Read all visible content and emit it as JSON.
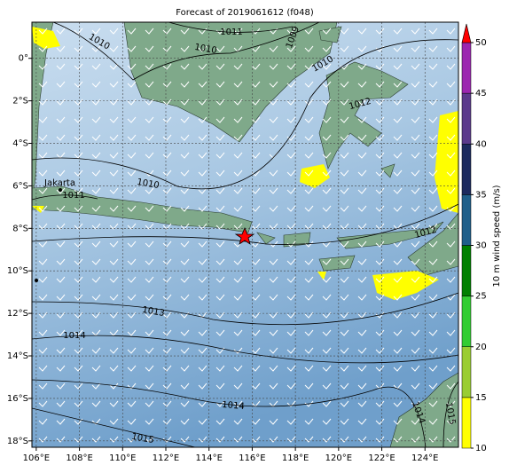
{
  "title": "Forecast of 2019061612 (f048)",
  "map": {
    "xlim": [
      105.8,
      125.55
    ],
    "ylim": [
      -18.3,
      1.7
    ],
    "xticks": [
      {
        "value": 106,
        "label": "106°E"
      },
      {
        "value": 108,
        "label": "108°E"
      },
      {
        "value": 110,
        "label": "110°E"
      },
      {
        "value": 112,
        "label": "112°E"
      },
      {
        "value": 114,
        "label": "114°E"
      },
      {
        "value": 116,
        "label": "116°E"
      },
      {
        "value": 118,
        "label": "118°E"
      },
      {
        "value": 120,
        "label": "120°E"
      },
      {
        "value": 122,
        "label": "122°E"
      },
      {
        "value": 124,
        "label": "124°E"
      }
    ],
    "yticks": [
      {
        "value": 0,
        "label": "0°"
      },
      {
        "value": -2,
        "label": "2°S"
      },
      {
        "value": -4,
        "label": "4°S"
      },
      {
        "value": -6,
        "label": "6°S"
      },
      {
        "value": -8,
        "label": "8°S"
      },
      {
        "value": -10,
        "label": "10°S"
      },
      {
        "value": -12,
        "label": "12°S"
      },
      {
        "value": -14,
        "label": "14°S"
      },
      {
        "value": -16,
        "label": "16°S"
      },
      {
        "value": -18,
        "label": "18°S"
      }
    ],
    "grid": true,
    "contour_labels": [
      "1010",
      "1011",
      "1010",
      "1009",
      "1010",
      "1012",
      "1010",
      "1011",
      "1012",
      "1013",
      "1014",
      "1014",
      "1015",
      "1014",
      "1015"
    ],
    "city": "Jakarta"
  },
  "colorbar": {
    "label": "10 m wind speed (m/s)",
    "lim": [
      10,
      50
    ],
    "ticks": [
      10,
      15,
      20,
      25,
      30,
      35,
      40,
      45,
      50
    ],
    "colors": [
      "#ffff00",
      "#9acd32",
      "#32cd32",
      "#008000",
      "#1f5f8a",
      "#1c2a5e",
      "#5b3a8c",
      "#9c27b0"
    ],
    "extend_color": "#ff0000"
  }
}
